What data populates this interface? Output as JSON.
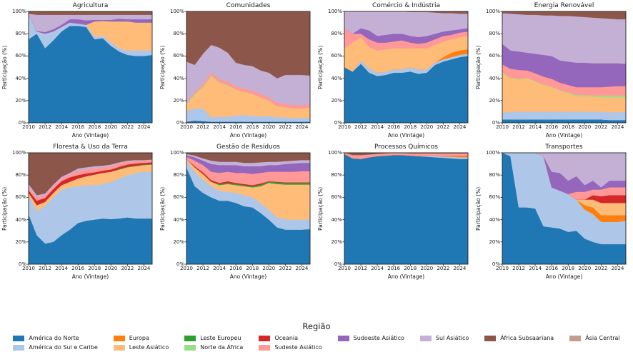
{
  "axes": {
    "xlabel": "Ano (Vintage)",
    "ylabel": "Participação (%)",
    "x_range": [
      2010,
      2025
    ],
    "y_range": [
      0,
      100
    ],
    "xticks": [
      "2010",
      "2012",
      "2014",
      "2016",
      "2018",
      "2020",
      "2022",
      "2024"
    ],
    "yticks": [
      "0%",
      "20%",
      "40%",
      "60%",
      "80%",
      "100%"
    ],
    "grid": false,
    "frame_color": "#262626"
  },
  "years": [
    2010,
    2011,
    2012,
    2013,
    2014,
    2015,
    2016,
    2017,
    2018,
    2019,
    2020,
    2021,
    2022,
    2023,
    2024,
    2025
  ],
  "regions": [
    {
      "name": "América do Norte",
      "color": "#1f77b4"
    },
    {
      "name": "América do Sul e Caribe",
      "color": "#aec7e8"
    },
    {
      "name": "Europa",
      "color": "#ff7f0e"
    },
    {
      "name": "Leste Asiático",
      "color": "#ffbb78"
    },
    {
      "name": "Leste Europeu",
      "color": "#2ca02c"
    },
    {
      "name": "Norte da África",
      "color": "#98df8a"
    },
    {
      "name": "Oceania",
      "color": "#d62728"
    },
    {
      "name": "Sudeste Asiático",
      "color": "#ff9896"
    },
    {
      "name": "Sudoeste Asiático",
      "color": "#9467bd"
    },
    {
      "name": "Sul Asiático",
      "color": "#c5b0d5"
    },
    {
      "name": "África Subsaariana",
      "color": "#8c564b"
    },
    {
      "name": "Ásia Central",
      "color": "#c49c94"
    }
  ],
  "legend": {
    "title": "Região",
    "rows": [
      [
        "América do Norte",
        "Europa",
        "Leste Europeu",
        "Oceania",
        "Sudoeste Asiático",
        "Sul Asiático",
        "África Subsaariana",
        "Ásia Central"
      ],
      [
        "América do Sul e Caribe",
        "Leste Asiático",
        "Norte da África",
        "Sudeste Asiático"
      ]
    ]
  },
  "chart_data": [
    {
      "type": "area",
      "stacked": true,
      "title": "Agricultura",
      "unit": "%",
      "series": {
        "América do Norte": [
          75,
          80,
          67,
          74,
          82,
          87,
          87,
          86,
          75,
          76,
          69,
          64,
          61,
          60,
          60,
          61
        ],
        "América do Sul e Caribe": [
          22,
          2,
          13,
          8,
          4,
          3,
          2,
          2,
          2,
          2,
          3,
          3,
          4,
          5,
          5,
          4
        ],
        "Leste Asiático": [
          0,
          0,
          0,
          0,
          0,
          0,
          0,
          0,
          14,
          13.5,
          19,
          24,
          26,
          25,
          25,
          25
        ],
        "Sudoeste Asiático": [
          0,
          0.5,
          1.5,
          2,
          2,
          3,
          4,
          4,
          1.5,
          1,
          1.5,
          2.5,
          2,
          3,
          3,
          3
        ],
        "Sul Asiático": [
          1,
          14.5,
          15.5,
          13,
          9,
          4,
          4,
          5,
          4.5,
          4.5,
          4.5,
          3.5,
          4,
          4,
          4,
          4
        ],
        "África Subsaariana": [
          2,
          3,
          3,
          3,
          3,
          3,
          3,
          3,
          3,
          3,
          3,
          3,
          3,
          3,
          3,
          3
        ]
      }
    },
    {
      "type": "area",
      "stacked": true,
      "title": "Comunidades",
      "unit": "%",
      "series": {
        "América do Norte": [
          1,
          2,
          1.5,
          1,
          1,
          1,
          1,
          1,
          1,
          1,
          1,
          1,
          1,
          1,
          1,
          1
        ],
        "América do Sul e Caribe": [
          9.5,
          11,
          11.5,
          4,
          4.5,
          4.5,
          5.5,
          6,
          5.5,
          5,
          5,
          4,
          4,
          3.5,
          3.5,
          3.5
        ],
        "Leste Asiático": [
          6,
          12,
          19,
          37,
          30.5,
          28,
          23.5,
          21,
          19.5,
          17,
          14,
          10,
          9,
          8.5,
          8.5,
          9.5
        ],
        "Norte da África": [
          1,
          1,
          1,
          0.5,
          0.5,
          0.5,
          0,
          0,
          0,
          0,
          0,
          0,
          0,
          0,
          0,
          0
        ],
        "Sudeste Asiático": [
          1.5,
          2,
          2,
          2.5,
          3,
          3,
          3,
          3,
          3,
          3,
          3,
          3,
          3,
          3,
          3,
          2.5
        ],
        "Sul Asiático": [
          36,
          24,
          27,
          25,
          28,
          26,
          21,
          21,
          22,
          21,
          22,
          22,
          26,
          27,
          27,
          26
        ],
        "África Subsaariana": [
          45,
          48,
          38,
          30,
          32.5,
          37,
          46,
          48,
          49,
          53,
          55,
          60,
          57,
          57,
          57,
          57.5
        ]
      }
    },
    {
      "type": "area",
      "stacked": true,
      "title": "Comércio & Indústria",
      "unit": "%",
      "series": {
        "América do Norte": [
          50,
          46,
          53,
          45,
          42,
          43,
          45,
          45,
          46,
          44,
          45,
          52,
          55,
          57,
          59,
          60
        ],
        "América do Sul e Caribe": [
          0,
          0,
          3,
          4,
          3,
          3,
          3,
          3,
          4,
          4,
          3,
          2,
          2,
          2,
          2,
          2
        ],
        "Europa": [
          0,
          0,
          0,
          0,
          0,
          0,
          0,
          0,
          0,
          0,
          0,
          0,
          2,
          4,
          4,
          4
        ],
        "Leste Asiático": [
          17,
          26,
          21,
          19,
          20,
          20,
          19,
          19,
          17,
          19,
          19,
          16,
          14,
          12,
          12,
          12
        ],
        "Sudeste Asiático": [
          18,
          8,
          3,
          7,
          7,
          6,
          6,
          7,
          5,
          4,
          5,
          5,
          5,
          4,
          4,
          4
        ],
        "Sudoeste Asiático": [
          0,
          0,
          5,
          8,
          6,
          7,
          7,
          6,
          6,
          6,
          6,
          5,
          4,
          4,
          3,
          3
        ],
        "Sul Asiático": [
          15,
          20,
          15,
          17,
          22,
          21,
          20,
          20,
          21.5,
          22.5,
          21.5,
          19,
          16.5,
          15.5,
          14,
          13
        ],
        "África Subsaariana": [
          0,
          0,
          0,
          0,
          0,
          0,
          0,
          0,
          0.5,
          0.5,
          0.5,
          1,
          1.5,
          1.5,
          2,
          2
        ]
      }
    },
    {
      "type": "area",
      "stacked": true,
      "title": "Energia Renovável",
      "unit": "%",
      "series": {
        "América do Norte": [
          3,
          3,
          3,
          3,
          3,
          3,
          3,
          3,
          3,
          3,
          3,
          3,
          3,
          2.5,
          2.5,
          2.5
        ],
        "América do Sul e Caribe": [
          6,
          7,
          7,
          7,
          7,
          7,
          7,
          7,
          7,
          7,
          7,
          7,
          7,
          7,
          7,
          7.5
        ],
        "Leste Asiático": [
          36,
          30,
          29,
          30,
          27,
          24,
          22,
          19,
          17,
          14,
          14,
          13.5,
          13,
          13.5,
          13.5,
          13
        ],
        "Norte da África": [
          0.5,
          0.5,
          0.5,
          0.5,
          0.5,
          0.5,
          0.5,
          0.5,
          0.5,
          1,
          1,
          1,
          1.5,
          1.5,
          1.5,
          1.5
        ],
        "Sudeste Asiático": [
          7,
          8,
          8,
          6.5,
          7,
          7,
          7,
          6.5,
          6.5,
          7,
          7,
          7.5,
          7.5,
          8,
          8.5,
          8.5
        ],
        "Sudoeste Asiático": [
          18.5,
          16.5,
          16.5,
          16,
          17.5,
          19.5,
          20.5,
          20,
          21,
          22,
          22,
          21.5,
          21.5,
          21,
          20.5,
          20
        ],
        "Sul Asiático": [
          27.5,
          33,
          33.5,
          34,
          35,
          35.5,
          36.5,
          40,
          41,
          41.5,
          41,
          41,
          40.5,
          40,
          39.5,
          40
        ],
        "África Subsaariana": [
          1.5,
          2,
          2.5,
          3,
          3,
          3.5,
          3.5,
          4,
          4,
          4.5,
          5,
          5.5,
          6,
          6.5,
          7,
          7
        ]
      }
    },
    {
      "type": "area",
      "stacked": true,
      "title": "Floresta & Uso da Terra",
      "unit": "%",
      "series": {
        "América do Norte": [
          45,
          26,
          18.5,
          20,
          26,
          31,
          37,
          39,
          40,
          41,
          40.5,
          41,
          42,
          41,
          41,
          41
        ],
        "América do Sul e Caribe": [
          17,
          22,
          34,
          40,
          41,
          38,
          33,
          32,
          31,
          31,
          33.5,
          36,
          38,
          41,
          42,
          42
        ],
        "Leste Asiático": [
          2,
          5,
          3.5,
          4,
          4,
          5,
          7,
          8,
          9.5,
          10,
          9,
          8,
          7,
          6,
          6,
          6.5
        ],
        "Leste Europeu": [
          0,
          0,
          0,
          0,
          0,
          0,
          0,
          0,
          0,
          0,
          0,
          0.5,
          0.5,
          0.5,
          0.5,
          0.5
        ],
        "Oceania": [
          2.5,
          4,
          3.5,
          3.5,
          3.5,
          4,
          3,
          2.5,
          2,
          2,
          2,
          2,
          2,
          2,
          1.5,
          1.5
        ],
        "Sudeste Asiático": [
          3.5,
          3,
          2.5,
          2.5,
          2.5,
          2.5,
          4,
          3.5,
          3.5,
          3,
          3,
          3,
          2.5,
          2,
          2,
          2
        ],
        "Sul Asiático": [
          2,
          2,
          1.5,
          1.5,
          1.5,
          1.5,
          2,
          2,
          2,
          1.5,
          1.5,
          1,
          1,
          1,
          0.5,
          0.5
        ],
        "África Subsaariana": [
          28,
          38,
          36.5,
          28.5,
          21.5,
          18,
          14,
          13,
          12,
          11.5,
          10.5,
          8.5,
          7,
          6.5,
          6.5,
          6
        ]
      }
    },
    {
      "type": "area",
      "stacked": true,
      "title": "Gestão de Resíduos",
      "unit": "%",
      "series": {
        "América do Norte": [
          87,
          70,
          64,
          60,
          57,
          57,
          55,
          52,
          51,
          46,
          40,
          33,
          31,
          31,
          31,
          31.5
        ],
        "América do Sul e Caribe": [
          6,
          13,
          12,
          10,
          9,
          8,
          9,
          10,
          9,
          9,
          9,
          9,
          9.5,
          9,
          9,
          9
        ],
        "Leste Asiático": [
          1.5,
          4,
          5,
          4,
          5,
          7,
          7,
          8,
          9,
          15,
          24,
          30,
          31,
          31.5,
          31.5,
          31
        ],
        "Leste Europeu": [
          0,
          0,
          0,
          0,
          1,
          1,
          1,
          1,
          1,
          1.5,
          1,
          1.5,
          1.5,
          1.5,
          1.5,
          1.5
        ],
        "Oceania": [
          0,
          1,
          1.5,
          1.5,
          1,
          1.5,
          1,
          1,
          1,
          1,
          0.5,
          0.5,
          0.5,
          0.5,
          0.5,
          0.5
        ],
        "Sudeste Asiático": [
          2,
          5,
          6.5,
          7.5,
          9,
          8.5,
          9,
          10,
          10,
          9.5,
          8.5,
          9,
          9.5,
          9.5,
          10,
          10
        ],
        "Sudoeste Asiático": [
          1.5,
          3,
          4,
          7,
          7,
          6,
          7,
          6,
          7,
          6,
          6,
          6,
          7,
          7.5,
          7.5,
          7.5
        ],
        "Sul Asiático": [
          1,
          1.5,
          2,
          3,
          3,
          3,
          3,
          3,
          3,
          3.5,
          3,
          3,
          2.5,
          2.5,
          2.5,
          2.5
        ],
        "África Subsaariana": [
          1,
          2.5,
          5,
          7,
          8,
          8,
          8,
          9,
          9,
          8.5,
          8,
          8,
          7.5,
          7,
          6.5,
          6.5
        ]
      }
    },
    {
      "type": "area",
      "stacked": true,
      "title": "Processos Químicos",
      "unit": "%",
      "series": {
        "América do Norte": [
          99,
          95,
          94.5,
          96,
          97,
          97.5,
          98,
          98,
          97.5,
          97,
          96.5,
          96,
          95.5,
          95,
          94.5,
          94.5
        ],
        "América do Sul e Caribe": [
          0,
          0,
          0,
          0,
          0,
          0,
          0,
          0,
          0,
          0,
          0.5,
          1,
          1,
          1.5,
          1.5,
          1.5
        ],
        "Europa": [
          0,
          0,
          0,
          0,
          0,
          0,
          0,
          0,
          0,
          0,
          0,
          0,
          0.5,
          1,
          1.5,
          1.5
        ],
        "Sudeste Asiático": [
          1,
          3,
          3.5,
          2.5,
          2,
          2,
          2,
          2,
          2,
          2.5,
          2.5,
          2.5,
          2.5,
          2,
          2,
          2
        ],
        "África Subsaariana": [
          0,
          2,
          2,
          1.5,
          1,
          0.5,
          0,
          0,
          0.5,
          0.5,
          0.5,
          0.5,
          0.5,
          0.5,
          0.5,
          0.5
        ]
      }
    },
    {
      "type": "area",
      "stacked": true,
      "title": "Transportes",
      "unit": "%",
      "series": {
        "América do Norte": [
          100,
          97,
          51,
          51,
          50,
          34,
          33,
          32,
          29,
          30,
          23,
          20,
          18,
          18,
          18,
          18
        ],
        "América do Sul e Caribe": [
          0,
          3,
          49,
          49,
          50,
          63,
          36,
          34,
          34,
          28,
          26,
          25,
          20,
          20,
          20,
          21
        ],
        "Europa": [
          0,
          0,
          0,
          0,
          0,
          0,
          0,
          0,
          0,
          0,
          4,
          6,
          6,
          6,
          6,
          5
        ],
        "Leste Asiático": [
          0,
          0,
          0,
          0,
          0,
          0,
          0,
          0,
          0,
          0,
          5,
          7,
          11,
          11,
          11,
          11
        ],
        "Oceania": [
          0,
          0,
          0,
          0,
          0,
          0,
          0,
          0,
          0,
          0,
          0,
          4,
          6,
          7,
          7,
          7
        ],
        "Sudeste Asiático": [
          0,
          0,
          0,
          0,
          0,
          0,
          0,
          0,
          0,
          7,
          7,
          5,
          6,
          7,
          7,
          7
        ],
        "Sudoeste Asiático": [
          0,
          0,
          0,
          0,
          0,
          0,
          14,
          16,
          12,
          14,
          6,
          8,
          2,
          6,
          6,
          6
        ],
        "Sul Asiático": [
          0,
          0,
          0,
          0,
          0,
          3,
          17,
          18,
          25,
          21,
          29,
          25,
          31,
          25,
          25,
          25
        ]
      }
    }
  ]
}
